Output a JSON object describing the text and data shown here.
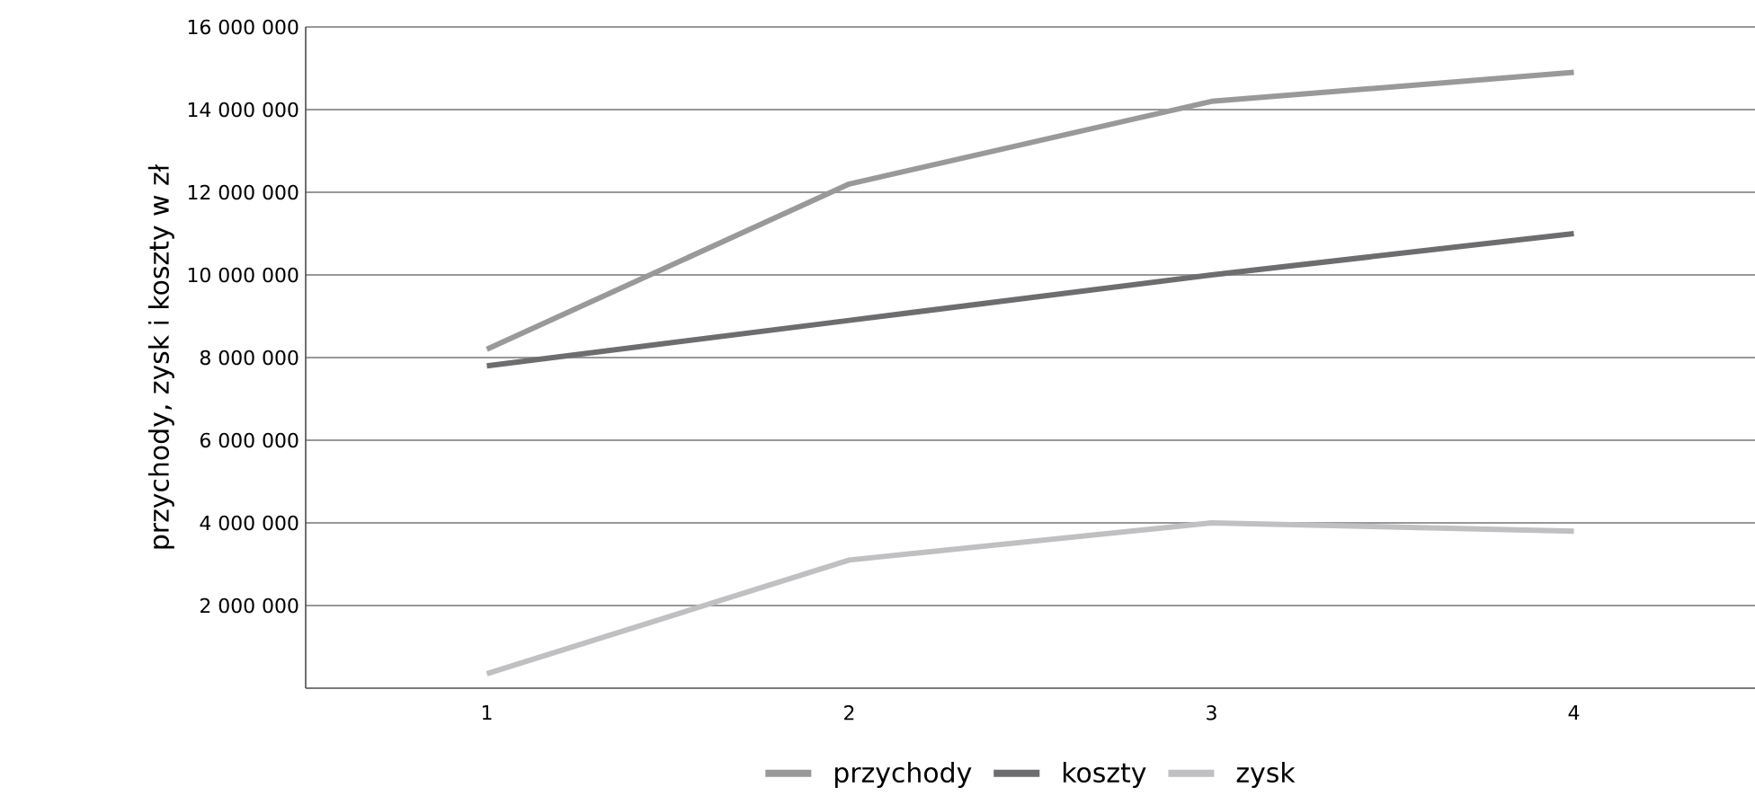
{
  "chart_data": {
    "type": "line",
    "ylabel": "przychody, zysk i koszty w zł",
    "categories": [
      "1",
      "2",
      "3",
      "4"
    ],
    "series": [
      {
        "name": "przychody",
        "color": "#999999",
        "values": [
          8200000,
          12200000,
          14200000,
          14900000
        ]
      },
      {
        "name": "koszty",
        "color": "#6d6d6f",
        "values": [
          7800000,
          8900000,
          10000000,
          11000000
        ]
      },
      {
        "name": "zysk",
        "color": "#c0c0c2",
        "values": [
          350000,
          3100000,
          4000000,
          3800000
        ]
      }
    ],
    "ylim": [
      0,
      16000000
    ],
    "yticks": [
      {
        "value": 2000000,
        "label": "2 000 000"
      },
      {
        "value": 4000000,
        "label": "4 000 000"
      },
      {
        "value": 6000000,
        "label": "6 000 000"
      },
      {
        "value": 8000000,
        "label": "8 000 000"
      },
      {
        "value": 10000000,
        "label": "10 000 000"
      },
      {
        "value": 12000000,
        "label": "12 000 000"
      },
      {
        "value": 14000000,
        "label": "14 000 000"
      },
      {
        "value": 16000000,
        "label": "16 000 000"
      }
    ],
    "grid": "y",
    "legend": "bottom",
    "marker": "none",
    "line_style": "solid"
  }
}
